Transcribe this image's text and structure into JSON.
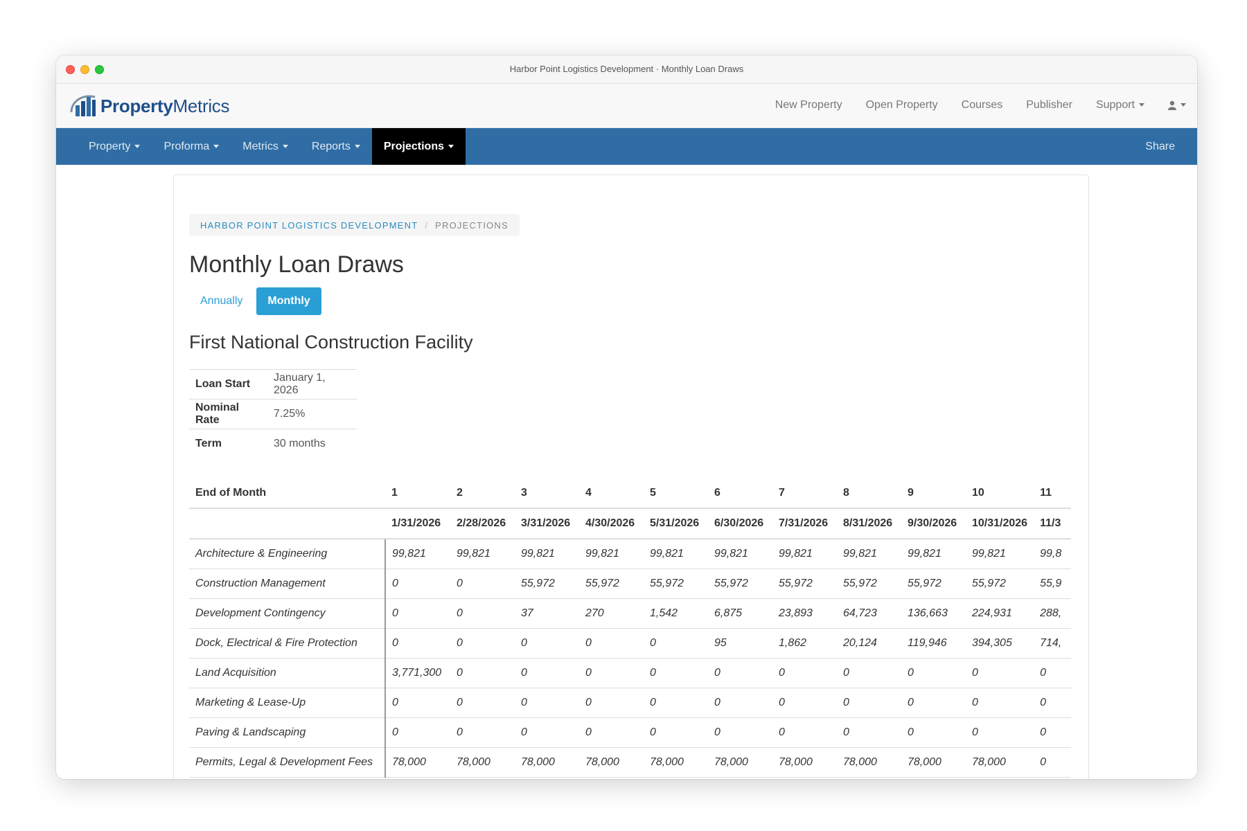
{
  "window": {
    "title": "Harbor Point Logistics Development · Monthly Loan Draws"
  },
  "brand": {
    "name_part1": "Property",
    "name_part2": "Metrics"
  },
  "top_links": [
    "New Property",
    "Open Property",
    "Courses",
    "Publisher",
    "Support"
  ],
  "nav": {
    "items": [
      "Property",
      "Proforma",
      "Metrics",
      "Reports",
      "Projections"
    ],
    "active": "Projections",
    "share": "Share",
    "color": "#2f6da4"
  },
  "breadcrumb": {
    "project": "Harbor Point Logistics Development",
    "separator": "/",
    "current": "Projections"
  },
  "page": {
    "title": "Monthly Loan Draws",
    "toggle": {
      "annually": "Annually",
      "monthly": "Monthly",
      "selected": "Monthly"
    },
    "facility_title": "First National Construction Facility"
  },
  "loan_info": [
    {
      "label": "Loan Start",
      "value": "January 1, 2026"
    },
    {
      "label": "Nominal Rate",
      "value": "7.25%"
    },
    {
      "label": "Term",
      "value": "30 months"
    }
  ],
  "draws_table": {
    "header_label": "End of Month",
    "months": [
      "1",
      "2",
      "3",
      "4",
      "5",
      "6",
      "7",
      "8",
      "9",
      "10",
      "11"
    ],
    "dates": [
      "1/31/2026",
      "2/28/2026",
      "3/31/2026",
      "4/30/2026",
      "5/31/2026",
      "6/30/2026",
      "7/31/2026",
      "8/31/2026",
      "9/30/2026",
      "10/31/2026",
      "11/3"
    ],
    "rows": [
      {
        "label": "Architecture & Engineering",
        "values": [
          "99,821",
          "99,821",
          "99,821",
          "99,821",
          "99,821",
          "99,821",
          "99,821",
          "99,821",
          "99,821",
          "99,821",
          "99,8"
        ]
      },
      {
        "label": "Construction Management",
        "values": [
          "0",
          "0",
          "55,972",
          "55,972",
          "55,972",
          "55,972",
          "55,972",
          "55,972",
          "55,972",
          "55,972",
          "55,9"
        ]
      },
      {
        "label": "Development Contingency",
        "values": [
          "0",
          "0",
          "37",
          "270",
          "1,542",
          "6,875",
          "23,893",
          "64,723",
          "136,663",
          "224,931",
          "288,"
        ]
      },
      {
        "label": "Dock, Electrical & Fire Protection",
        "values": [
          "0",
          "0",
          "0",
          "0",
          "0",
          "95",
          "1,862",
          "20,124",
          "119,946",
          "394,305",
          "714,"
        ]
      },
      {
        "label": "Land Acquisition",
        "values": [
          "3,771,300",
          "0",
          "0",
          "0",
          "0",
          "0",
          "0",
          "0",
          "0",
          "0",
          "0"
        ]
      },
      {
        "label": "Marketing & Lease-Up",
        "values": [
          "0",
          "0",
          "0",
          "0",
          "0",
          "0",
          "0",
          "0",
          "0",
          "0",
          "0"
        ]
      },
      {
        "label": "Paving & Landscaping",
        "values": [
          "0",
          "0",
          "0",
          "0",
          "0",
          "0",
          "0",
          "0",
          "0",
          "0",
          "0"
        ]
      },
      {
        "label": "Permits, Legal & Development Fees",
        "values": [
          "78,000",
          "78,000",
          "78,000",
          "78,000",
          "78,000",
          "78,000",
          "78,000",
          "78,000",
          "78,000",
          "78,000",
          "0"
        ]
      }
    ]
  }
}
